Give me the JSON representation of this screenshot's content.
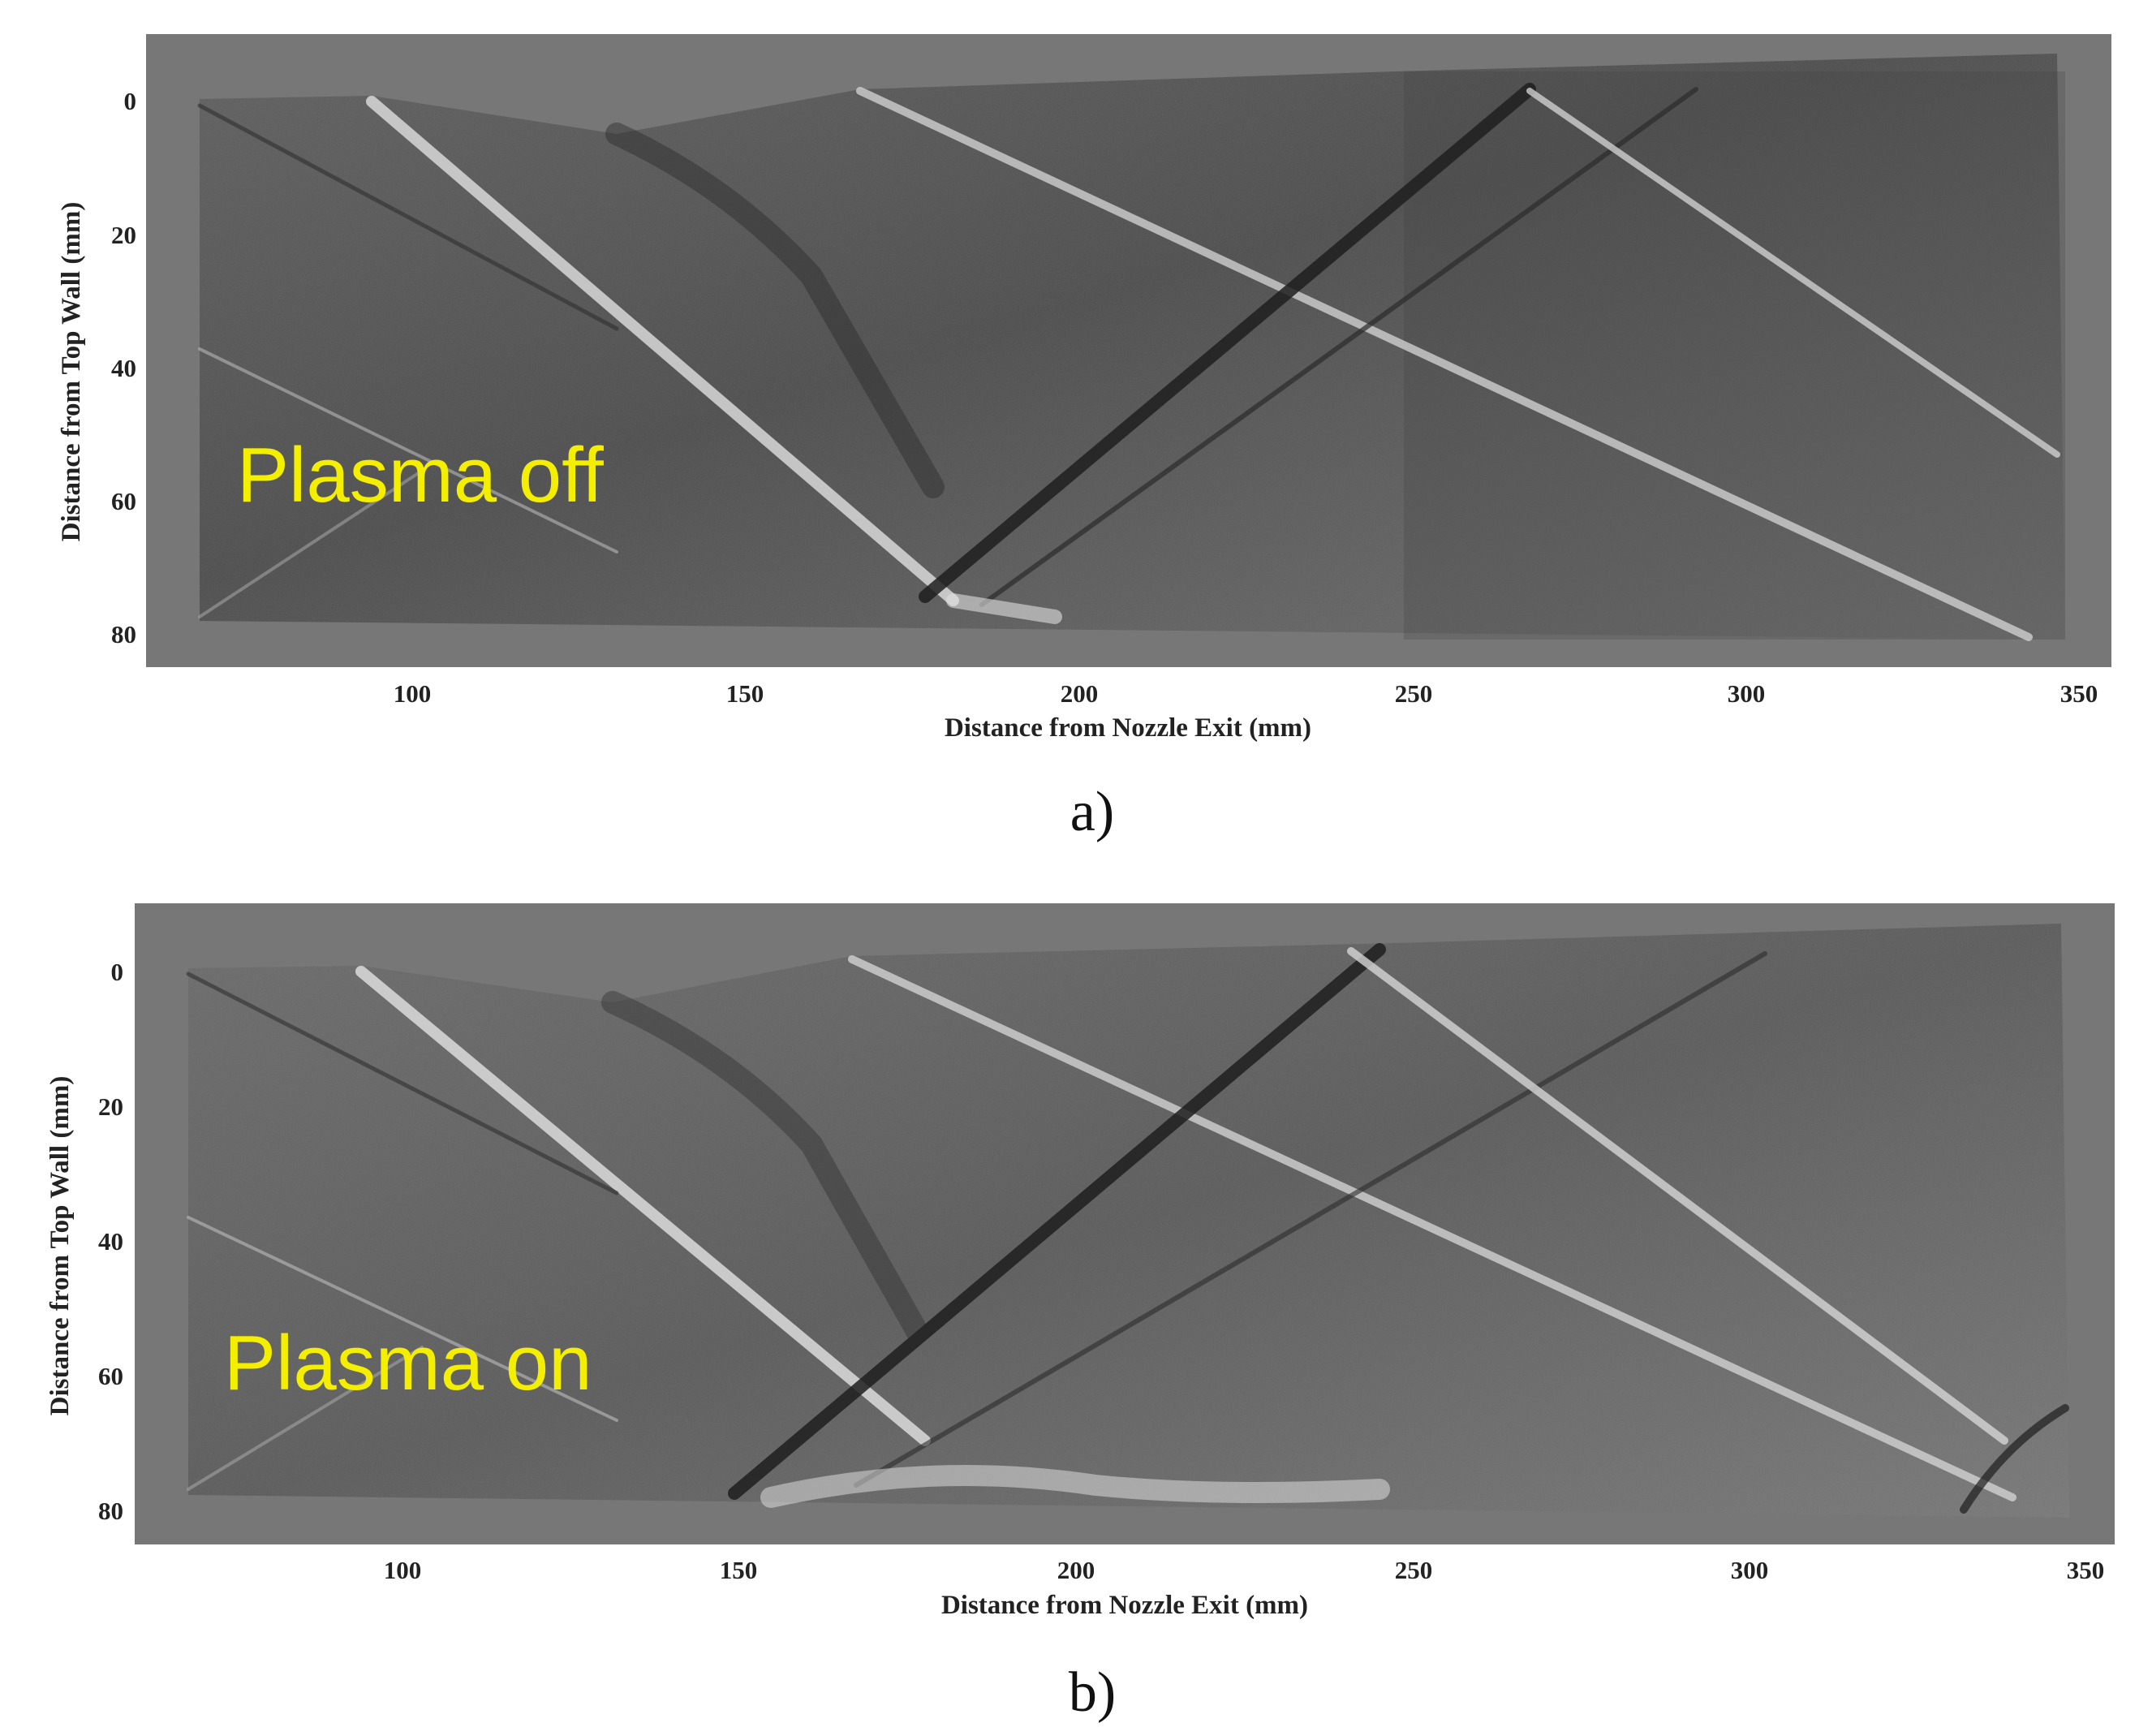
{
  "panels": [
    {
      "id": "a",
      "overlay_label": "Plasma off",
      "caption": "a)",
      "xlabel": "Distance from Nozzle Exit (mm)",
      "ylabel": "Distance from Top Wall (mm)",
      "xticks": [
        "100",
        "150",
        "200",
        "250",
        "300",
        "350"
      ],
      "yticks": [
        "0",
        "20",
        "40",
        "60",
        "80"
      ]
    },
    {
      "id": "b",
      "overlay_label": "Plasma on",
      "caption": "b)",
      "xlabel": "Distance from Nozzle Exit (mm)",
      "ylabel": "Distance from Top Wall (mm)",
      "xticks": [
        "100",
        "150",
        "200",
        "250",
        "300",
        "350"
      ],
      "yticks": [
        "0",
        "20",
        "40",
        "60",
        "80"
      ]
    }
  ],
  "colors": {
    "frame_background": "#767676",
    "schlieren_field": "#6a6a6a",
    "overlay_text": "#f4ee00"
  }
}
